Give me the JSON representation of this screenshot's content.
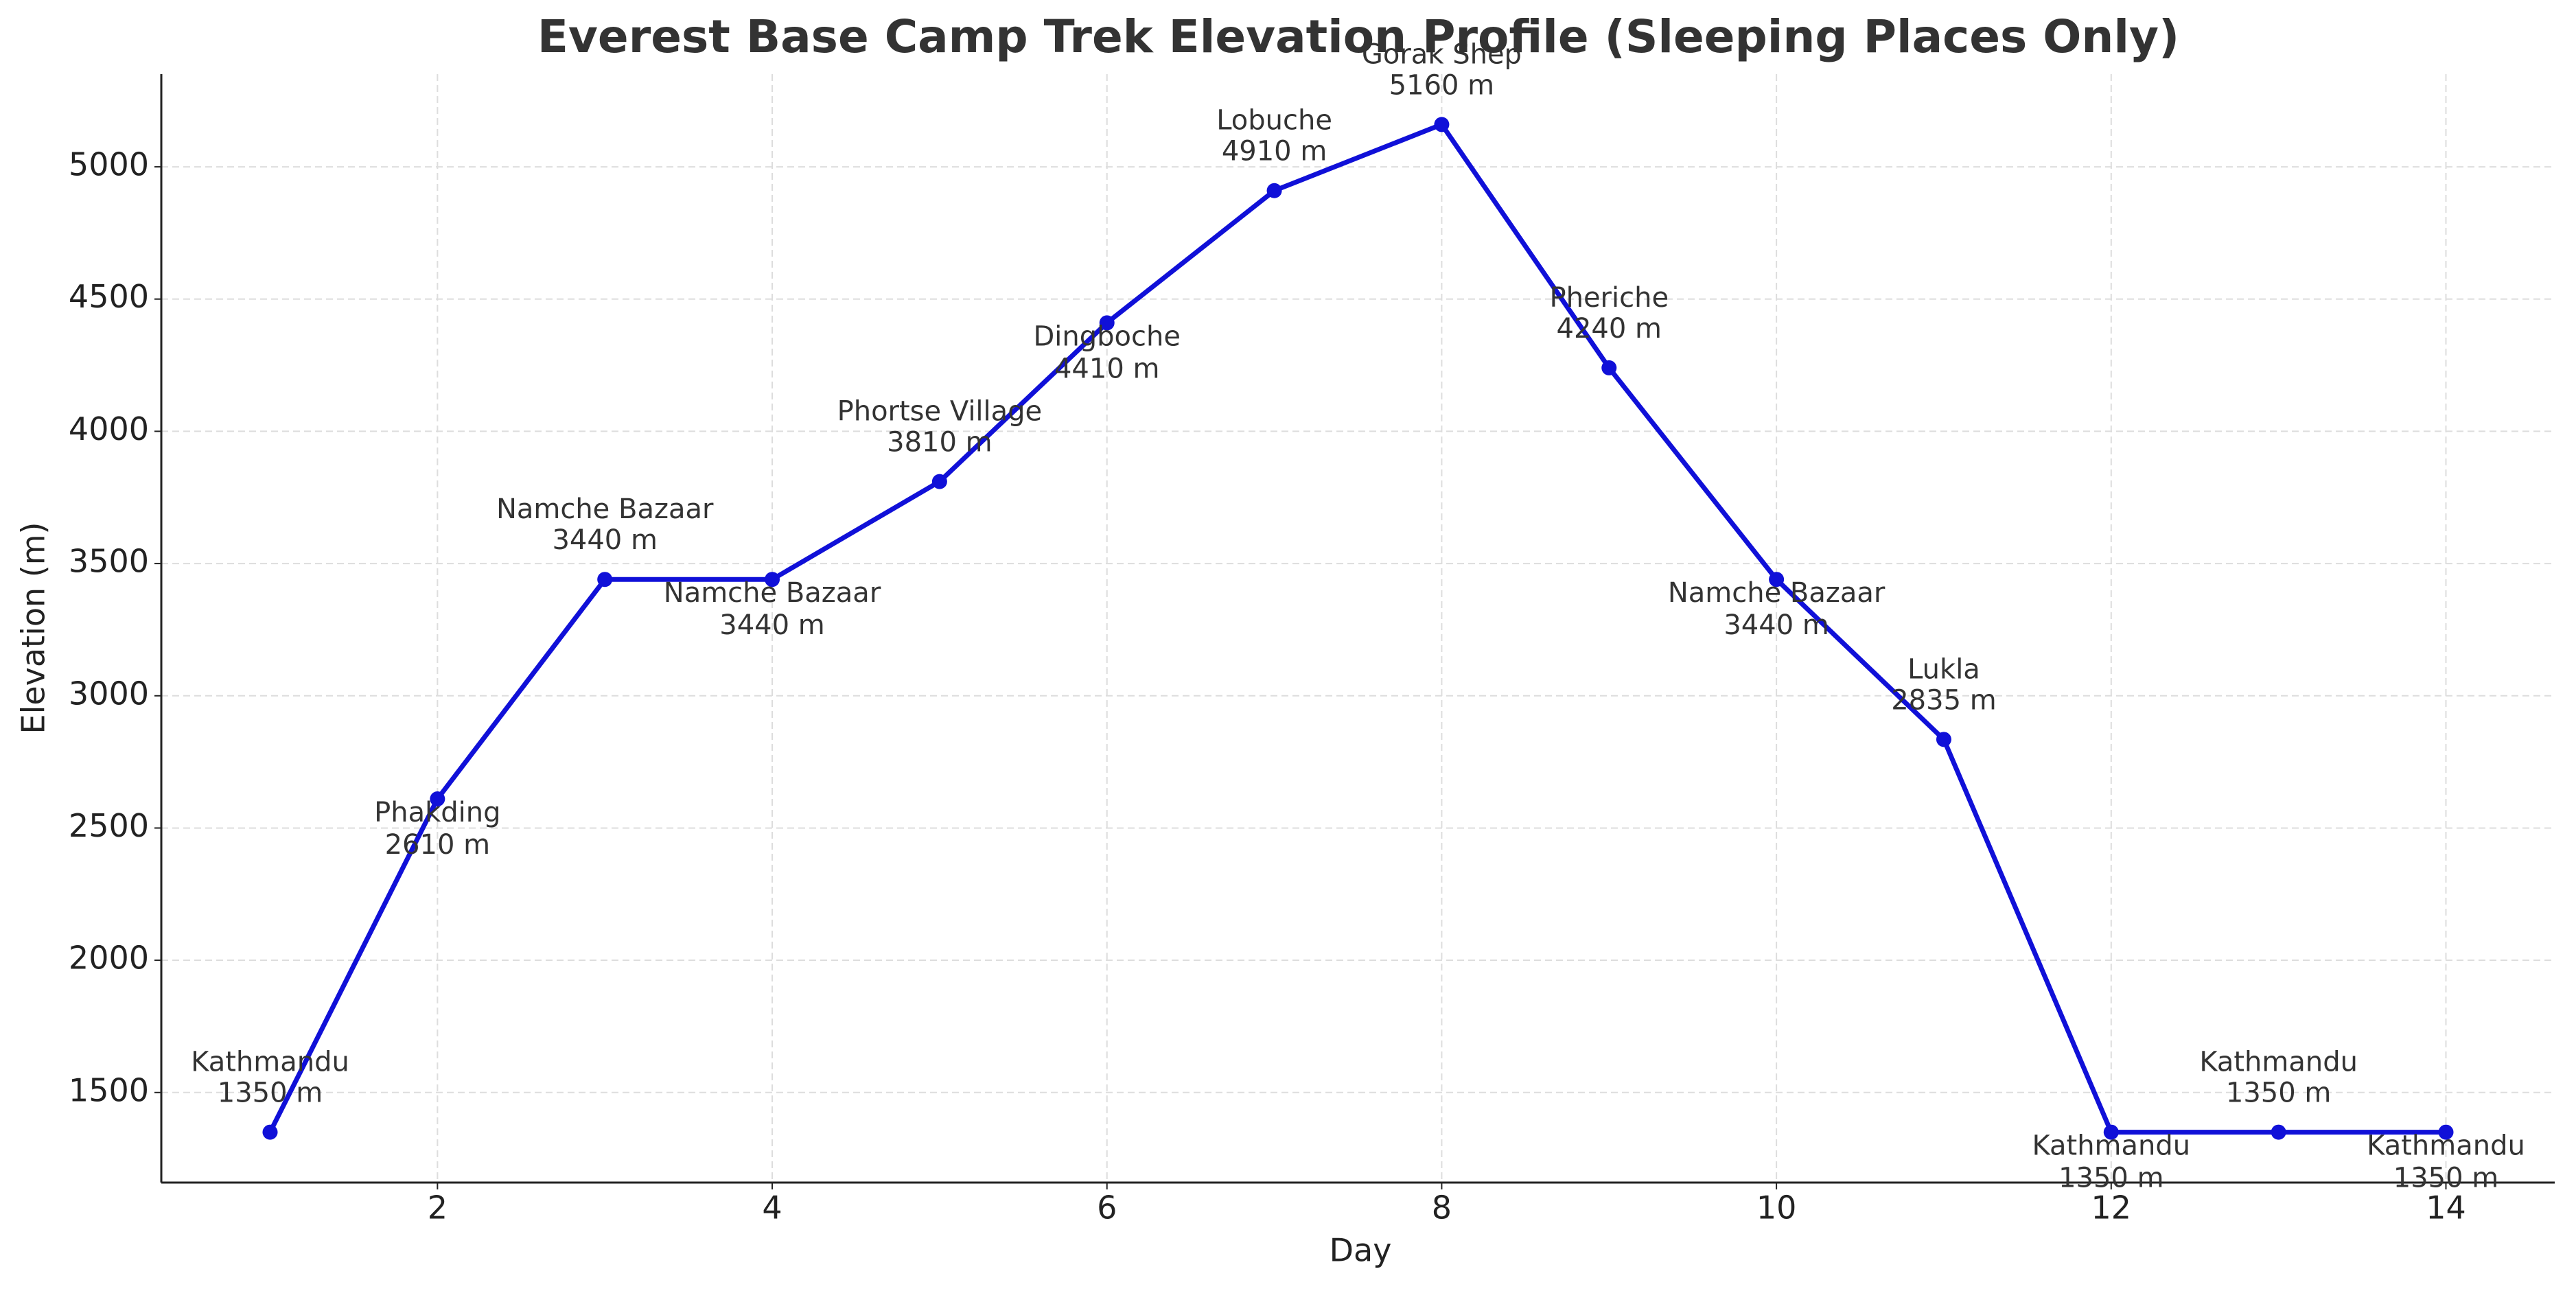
{
  "chart_data": {
    "type": "line",
    "title": "Everest Base Camp Trek Elevation Profile (Sleeping Places Only)",
    "x_label": "Day",
    "y_label": "Elevation (m)",
    "x": [
      1,
      2,
      3,
      4,
      5,
      6,
      7,
      8,
      9,
      10,
      11,
      12,
      13,
      14
    ],
    "values": [
      1350,
      2610,
      3440,
      3440,
      3810,
      4410,
      4910,
      5160,
      4240,
      3440,
      2835,
      1350,
      1350,
      1350
    ],
    "value_labels": [
      "1350 m",
      "2610 m",
      "3440 m",
      "3440 m",
      "3810 m",
      "4410 m",
      "4910 m",
      "5160 m",
      "4240 m",
      "3440 m",
      "2835 m",
      "1350 m",
      "1350 m",
      "1350 m"
    ],
    "point_labels": [
      "Kathmandu",
      "Phakding",
      "Namche Bazaar",
      "Namche Bazaar",
      "Phortse Village",
      "Dingboche",
      "Lobuche",
      "Gorak Shep",
      "Pheriche",
      "Namche Bazaar",
      "Lukla",
      "Kathmandu",
      "Kathmandu",
      "Kathmandu"
    ],
    "color": "#1010d8",
    "xlim": [
      0.35,
      14.65
    ],
    "xticks": [
      2,
      4,
      6,
      8,
      10,
      12,
      14
    ],
    "ylim": [
      1159.5,
      5350.5
    ],
    "yticks": [
      1500,
      2000,
      2500,
      3000,
      3500,
      4000,
      4500,
      5000
    ],
    "grid": true
  }
}
